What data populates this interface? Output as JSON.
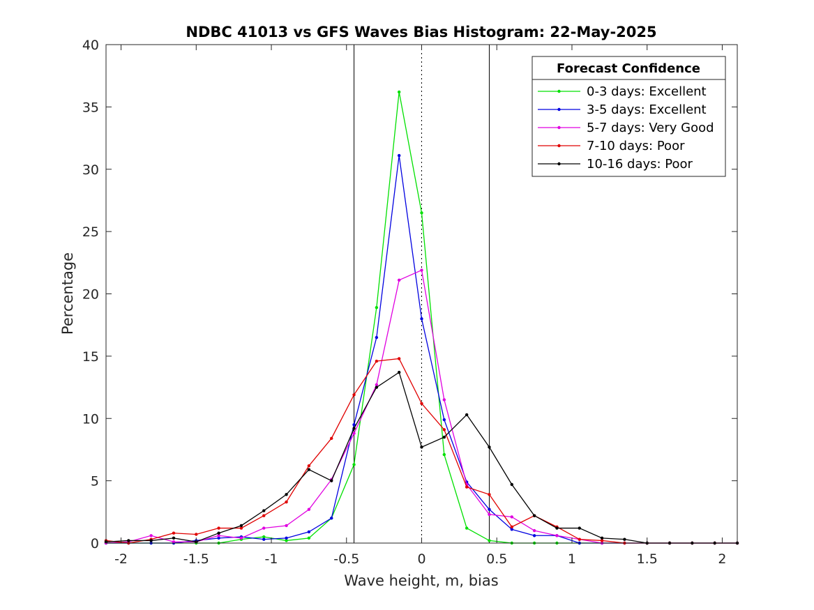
{
  "chart_data": {
    "type": "line",
    "title": "NDBC 41013 vs GFS Waves Bias Histogram: 22-May-2025",
    "xlabel": "Wave height, m, bias",
    "ylabel": "Percentage",
    "xlim": [
      -2.1,
      2.1
    ],
    "ylim": [
      0,
      40
    ],
    "xticks": [
      -2,
      -1.5,
      -1,
      -0.5,
      0,
      0.5,
      1,
      1.5,
      2
    ],
    "xtick_labels": [
      "-2",
      "-1.5",
      "-1",
      "-0.5",
      "0",
      "0.5",
      "1",
      "1.5",
      "2"
    ],
    "yticks": [
      0,
      5,
      10,
      15,
      20,
      25,
      30,
      35,
      40
    ],
    "ytick_labels": [
      "0",
      "5",
      "10",
      "15",
      "20",
      "25",
      "30",
      "35",
      "40"
    ],
    "grid": false,
    "legend": {
      "title": "Forecast Confidence",
      "placement": "top-right"
    },
    "reference_lines": [
      {
        "x": -0.45,
        "style": "solid"
      },
      {
        "x": 0,
        "style": "dotted"
      },
      {
        "x": 0.45,
        "style": "solid"
      }
    ],
    "x": [
      -2.1,
      -1.95,
      -1.8,
      -1.65,
      -1.5,
      -1.35,
      -1.2,
      -1.05,
      -0.9,
      -0.75,
      -0.6,
      -0.45,
      -0.3,
      -0.15,
      0,
      0.15,
      0.3,
      0.45,
      0.6,
      0.75,
      0.9,
      1.05,
      1.2,
      1.35,
      1.5,
      1.65,
      1.8,
      1.95,
      2.1
    ],
    "series": [
      {
        "name": "0-3 days: Excellent",
        "color": "#00e000",
        "values": [
          0,
          0,
          0,
          0,
          0,
          0,
          0.3,
          0.5,
          0.2,
          0.4,
          2,
          6.3,
          18.9,
          36.2,
          26.5,
          7.1,
          1.2,
          0.2,
          0,
          0,
          0,
          0,
          0,
          0,
          0,
          0,
          0,
          0,
          0
        ]
      },
      {
        "name": "3-5 days: Excellent",
        "color": "#0000e0",
        "values": [
          0,
          0,
          0,
          0,
          0.2,
          0.4,
          0.5,
          0.3,
          0.4,
          0.9,
          2,
          9.5,
          16.5,
          31.1,
          18,
          9.9,
          4.9,
          2.7,
          1.1,
          0.6,
          0.6,
          0,
          0,
          0,
          0,
          0,
          0,
          0,
          0
        ]
      },
      {
        "name": "5-7 days: Very Good",
        "color": "#e000e0",
        "values": [
          0,
          0.1,
          0.6,
          0.1,
          0.1,
          0.6,
          0.4,
          1.2,
          1.4,
          2.7,
          5.1,
          8.8,
          12.7,
          21.1,
          21.9,
          11.5,
          4.7,
          2.3,
          2.1,
          1,
          0.6,
          0.3,
          0,
          0,
          0,
          0,
          0,
          0,
          0
        ]
      },
      {
        "name": "7-10 days: Poor",
        "color": "#e00000",
        "values": [
          0.2,
          0,
          0.3,
          0.8,
          0.7,
          1.2,
          1.2,
          2.2,
          3.3,
          6.2,
          8.4,
          11.9,
          14.6,
          14.8,
          11.2,
          9.1,
          4.5,
          3.9,
          1.3,
          2.2,
          1.3,
          0.3,
          0.2,
          0,
          0,
          0,
          0,
          0,
          0
        ]
      },
      {
        "name": "10-16 days: Poor",
        "color": "#000000",
        "values": [
          0.1,
          0.2,
          0.2,
          0.4,
          0.1,
          0.8,
          1.4,
          2.6,
          3.9,
          5.9,
          5,
          9.2,
          12.5,
          13.7,
          7.7,
          8.5,
          10.3,
          7.7,
          4.7,
          2.2,
          1.2,
          1.2,
          0.4,
          0.3,
          0,
          0,
          0,
          0,
          0
        ]
      }
    ]
  }
}
